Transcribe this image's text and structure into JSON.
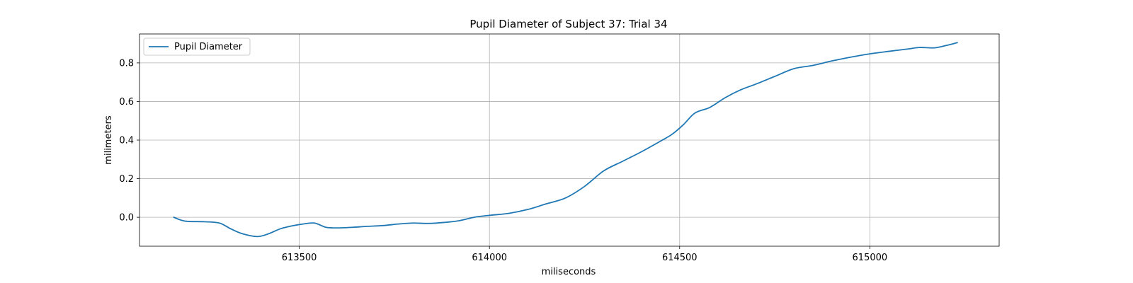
{
  "chart_data": {
    "type": "line",
    "title": "Pupil Diameter of Subject 37: Trial 34",
    "xlabel": "miliseconds",
    "ylabel": "milimeters",
    "xlim": [
      613080,
      615340
    ],
    "ylim": [
      -0.15,
      0.95
    ],
    "xticks": [
      613500,
      614000,
      614500,
      615000
    ],
    "yticks": [
      0.0,
      0.2,
      0.4,
      0.6,
      0.8
    ],
    "ytick_labels": [
      "0.0",
      "0.2",
      "0.4",
      "0.6",
      "0.8"
    ],
    "grid": true,
    "legend_position": "top-left",
    "series": [
      {
        "name": "Pupil Diameter",
        "color": "#1f77b4",
        "x": [
          613170,
          613200,
          613250,
          613290,
          613320,
          613350,
          613390,
          613420,
          613450,
          613480,
          613510,
          613540,
          613570,
          613600,
          613640,
          613680,
          613720,
          613760,
          613800,
          613840,
          613880,
          613920,
          613960,
          614000,
          614050,
          614100,
          614150,
          614200,
          614250,
          614300,
          614350,
          614400,
          614450,
          614480,
          614510,
          614540,
          614580,
          614620,
          614660,
          614700,
          614750,
          614800,
          614850,
          614900,
          614950,
          615000,
          615050,
          615100,
          615130,
          615170,
          615200,
          615230
        ],
        "y": [
          0.0,
          -0.02,
          -0.023,
          -0.03,
          -0.06,
          -0.085,
          -0.1,
          -0.085,
          -0.06,
          -0.045,
          -0.035,
          -0.03,
          -0.052,
          -0.055,
          -0.052,
          -0.047,
          -0.043,
          -0.035,
          -0.03,
          -0.032,
          -0.027,
          -0.018,
          0.0,
          0.01,
          0.02,
          0.04,
          0.07,
          0.1,
          0.16,
          0.24,
          0.29,
          0.34,
          0.395,
          0.43,
          0.48,
          0.54,
          0.57,
          0.62,
          0.66,
          0.69,
          0.73,
          0.77,
          0.787,
          0.81,
          0.83,
          0.847,
          0.86,
          0.872,
          0.88,
          0.878,
          0.89,
          0.905
        ]
      }
    ]
  }
}
